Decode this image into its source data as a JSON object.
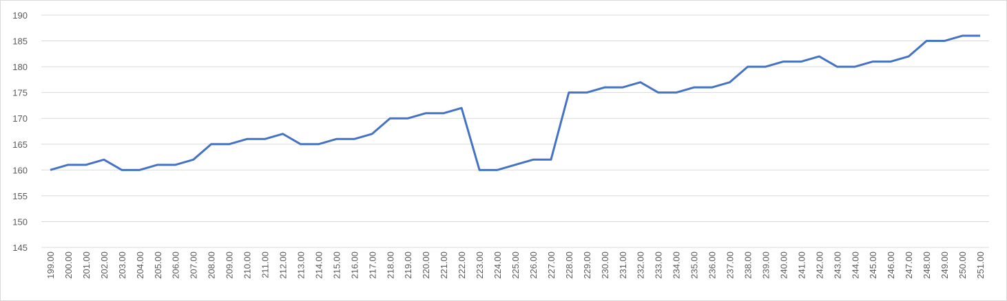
{
  "chart_data": {
    "type": "line",
    "categories": [
      "199.00",
      "200.00",
      "201.00",
      "202.00",
      "203.00",
      "204.00",
      "205.00",
      "206.00",
      "207.00",
      "208.00",
      "209.00",
      "210.00",
      "211.00",
      "212.00",
      "213.00",
      "214.00",
      "215.00",
      "216.00",
      "217.00",
      "218.00",
      "219.00",
      "220.00",
      "221.00",
      "222.00",
      "223.00",
      "224.00",
      "225.00",
      "226.00",
      "227.00",
      "228.00",
      "229.00",
      "230.00",
      "231.00",
      "232.00",
      "233.00",
      "234.00",
      "235.00",
      "236.00",
      "237.00",
      "238.00",
      "239.00",
      "240.00",
      "241.00",
      "242.00",
      "243.00",
      "244.00",
      "245.00",
      "246.00",
      "247.00",
      "248.00",
      "249.00",
      "250.00",
      "251.00"
    ],
    "values": [
      160,
      161,
      161,
      162,
      160,
      160,
      161,
      161,
      162,
      165,
      165,
      166,
      166,
      167,
      165,
      165,
      166,
      166,
      167,
      170,
      170,
      171,
      171,
      172,
      160,
      160,
      161,
      162,
      162,
      175,
      175,
      176,
      176,
      177,
      175,
      175,
      176,
      176,
      177,
      180,
      180,
      181,
      181,
      182,
      180,
      180,
      181,
      181,
      182,
      185,
      185,
      186,
      186
    ],
    "color": "#4472c4",
    "ylim": [
      145,
      190
    ],
    "yticks": [
      145,
      150,
      155,
      160,
      165,
      170,
      175,
      180,
      185,
      190
    ],
    "grid": true
  }
}
